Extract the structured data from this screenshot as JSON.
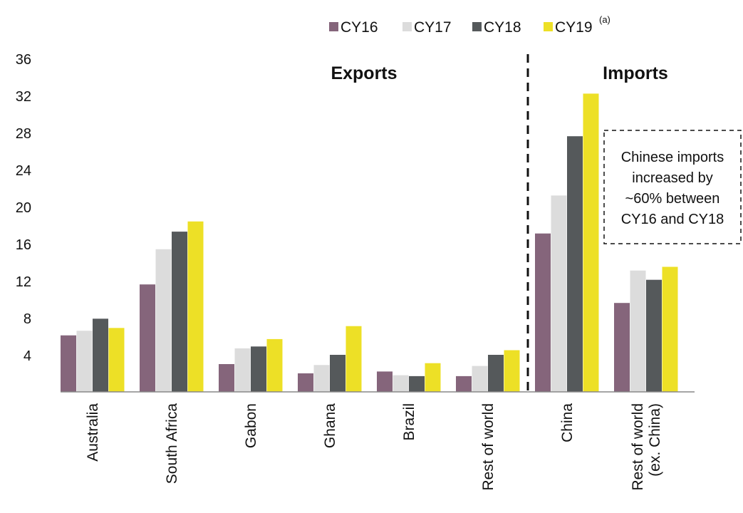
{
  "chart_data": {
    "type": "bar",
    "categories": [
      "Australia",
      "South Africa",
      "Gabon",
      "Ghana",
      "Brazil",
      "Rest of world",
      "China",
      "Rest of world (ex. China)"
    ],
    "category_lines": [
      [
        "Australia"
      ],
      [
        "South Africa"
      ],
      [
        "Gabon"
      ],
      [
        "Ghana"
      ],
      [
        "Brazil"
      ],
      [
        "Rest of world"
      ],
      [
        "China"
      ],
      [
        "Rest of world",
        "(ex. China)"
      ]
    ],
    "series": [
      {
        "name": "CY16",
        "color": "#85657b",
        "values": [
          6.1,
          11.6,
          3.0,
          2.0,
          2.2,
          1.7,
          17.1,
          9.6
        ]
      },
      {
        "name": "CY17",
        "color": "#dcdcdc",
        "values": [
          6.6,
          15.4,
          4.7,
          2.9,
          1.8,
          2.8,
          21.2,
          13.1
        ]
      },
      {
        "name": "CY18",
        "color": "#55595b",
        "values": [
          7.9,
          17.3,
          4.9,
          4.0,
          1.7,
          4.0,
          27.6,
          12.1
        ]
      },
      {
        "name": "CY19",
        "color": "#ede026",
        "values": [
          6.9,
          18.4,
          5.7,
          7.1,
          3.1,
          4.5,
          32.2,
          13.5
        ]
      }
    ],
    "legend_superscript": "(a)",
    "legend_superscript_series": "CY19",
    "ylim": [
      0,
      36
    ],
    "yticks": [
      4,
      8,
      12,
      16,
      20,
      24,
      28,
      32,
      36
    ],
    "title": "",
    "xlabel": "",
    "ylabel": "",
    "grid": false,
    "legend_position": "top-right",
    "groups": [
      {
        "label": "Exports",
        "categories": [
          "Australia",
          "South Africa",
          "Gabon",
          "Ghana",
          "Brazil",
          "Rest of world"
        ]
      },
      {
        "label": "Imports",
        "categories": [
          "China",
          "Rest of world (ex. China)"
        ]
      }
    ],
    "annotation": {
      "lines": [
        "Chinese imports",
        "increased by",
        "~60% between",
        "CY16 and CY18"
      ]
    }
  }
}
